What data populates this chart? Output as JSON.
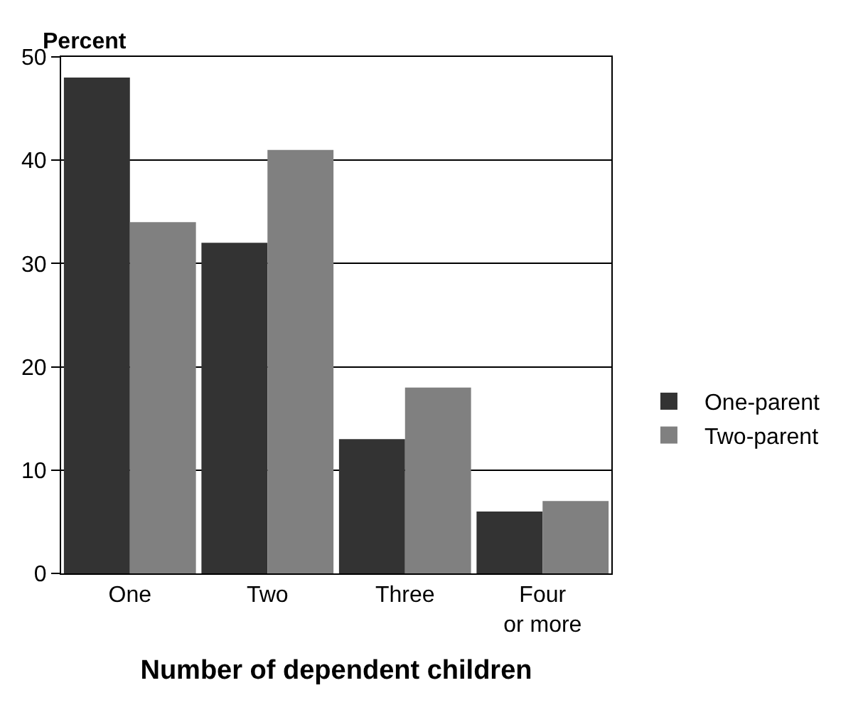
{
  "chart_data": {
    "type": "bar",
    "ylabel": "Percent",
    "xlabel": "Number of dependent children",
    "categories": [
      "One",
      "Two",
      "Three",
      "Four or more"
    ],
    "series": [
      {
        "name": "One-parent",
        "color": "#333333",
        "values": [
          48,
          32,
          13,
          6
        ]
      },
      {
        "name": "Two-parent",
        "color": "#808080",
        "values": [
          34,
          41,
          18,
          7
        ]
      }
    ],
    "ylim": [
      0,
      50
    ],
    "yticks": [
      0,
      10,
      20,
      30,
      40,
      50
    ],
    "grid": "y",
    "legend": "right"
  }
}
